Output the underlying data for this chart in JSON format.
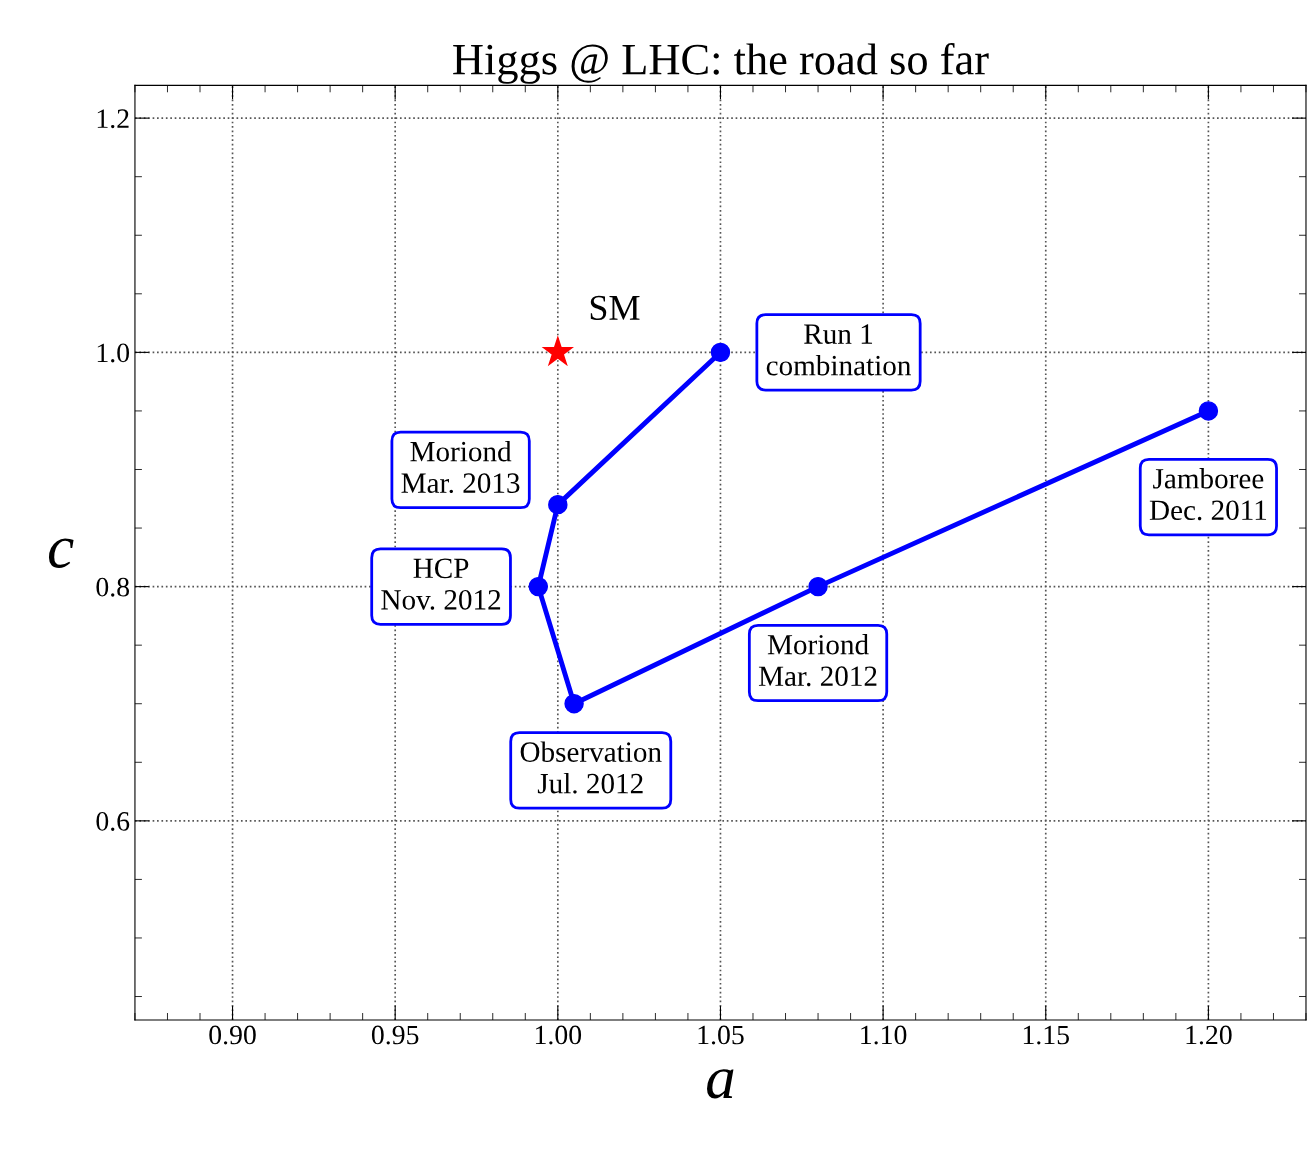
{
  "chart_data": {
    "type": "line",
    "title": "Higgs @ LHC: the road so far",
    "xlabel": "a",
    "ylabel": "c",
    "series": [
      {
        "color": "#0000ff",
        "marker": "circle",
        "line_style": "solid",
        "x": [
          1.2,
          1.08,
          1.005,
          0.994,
          1.0,
          1.05
        ],
        "values": [
          0.95,
          0.8,
          0.7,
          0.8,
          0.87,
          1.0
        ]
      },
      {
        "type": "scatter",
        "name": "SM",
        "color": "#ff0000",
        "marker": "star",
        "x": [
          1.0
        ],
        "values": [
          1.0
        ]
      }
    ],
    "annotations": [
      {
        "text": "Jamboree\nDec. 2011",
        "x": 1.2,
        "y": 0.95
      },
      {
        "text": "Moriond\nMar. 2012",
        "x": 1.08,
        "y": 0.8
      },
      {
        "text": "Observation\nJul. 2012",
        "x": 1.005,
        "y": 0.7
      },
      {
        "text": "HCP\nNov. 2012",
        "x": 0.994,
        "y": 0.8
      },
      {
        "text": "Moriond\nMar. 2013",
        "x": 1.0,
        "y": 0.87
      },
      {
        "text": "Run 1\ncombination",
        "x": 1.05,
        "y": 1.0
      }
    ],
    "xlim": [
      0.87,
      1.23
    ],
    "ylim": [
      0.43,
      1.228
    ],
    "xticks": [
      {
        "value": 0.9,
        "label": "0.90"
      },
      0.95,
      {
        "value": 1.0,
        "label": "1.00"
      },
      1.05,
      {
        "value": 1.1,
        "label": "1.10"
      },
      1.15,
      {
        "value": 1.2,
        "label": "1.20"
      }
    ],
    "yticks": [
      0.6,
      0.8,
      {
        "value": 1.0,
        "label": "1.0"
      },
      1.2
    ],
    "grid": true
  }
}
